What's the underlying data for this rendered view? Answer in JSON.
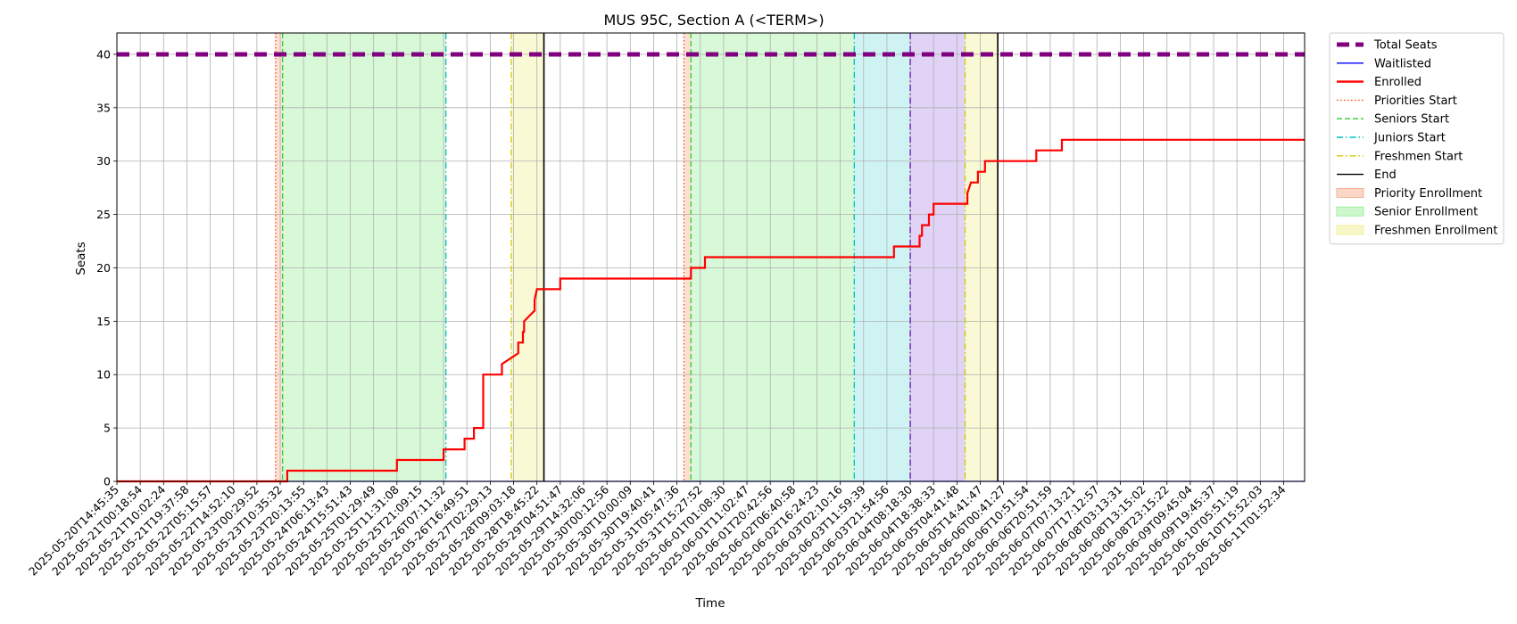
{
  "chart_data": {
    "type": "line",
    "title": "MUS 95C, Section A (<TERM>)",
    "xlabel": "Time",
    "ylabel": "Seats",
    "ylim": [
      0,
      42
    ],
    "yticks": [
      0,
      5,
      10,
      15,
      20,
      25,
      30,
      35,
      40
    ],
    "grid": true,
    "legend_position": "outside-top-right",
    "x_ticks": [
      "2025-05-20T14:45:35",
      "2025-05-21T00:18:54",
      "2025-05-21T10:02:24",
      "2025-05-21T19:37:58",
      "2025-05-22T05:15:57",
      "2025-05-22T14:52:10",
      "2025-05-23T00:29:52",
      "2025-05-23T10:35:32",
      "2025-05-23T20:13:55",
      "2025-05-24T06:13:43",
      "2025-05-24T15:51:43",
      "2025-05-25T01:29:49",
      "2025-05-25T11:31:08",
      "2025-05-25T21:09:15",
      "2025-05-26T07:11:32",
      "2025-05-26T16:49:51",
      "2025-05-27T02:29:13",
      "2025-05-28T09:03:18",
      "2025-05-28T18:45:22",
      "2025-05-29T04:51:47",
      "2025-05-29T14:32:06",
      "2025-05-30T00:12:56",
      "2025-05-30T10:00:09",
      "2025-05-30T19:40:41",
      "2025-05-31T05:47:36",
      "2025-05-31T15:27:52",
      "2025-06-01T01:08:30",
      "2025-06-01T11:02:47",
      "2025-06-01T20:42:56",
      "2025-06-02T06:40:58",
      "2025-06-02T16:24:23",
      "2025-06-03T02:10:16",
      "2025-06-03T11:59:39",
      "2025-06-03T21:54:56",
      "2025-06-04T08:18:30",
      "2025-06-04T18:38:33",
      "2025-06-05T04:41:48",
      "2025-06-05T14:41:47",
      "2025-06-06T00:41:27",
      "2025-06-06T10:51:54",
      "2025-06-06T20:51:59",
      "2025-06-07T07:13:21",
      "2025-06-07T17:12:57",
      "2025-06-08T03:13:31",
      "2025-06-08T13:15:02",
      "2025-06-08T23:15:22",
      "2025-06-09T09:45:04",
      "2025-06-09T19:45:37",
      "2025-06-10T05:51:19",
      "2025-06-10T15:52:03",
      "2025-06-11T01:52:34"
    ],
    "x_extent": [
      0,
      50.9
    ],
    "series": [
      {
        "name": "Total Seats",
        "color": "#800080",
        "style": "dashed",
        "x": [
          0,
          50.9
        ],
        "y": [
          40,
          40
        ]
      },
      {
        "name": "Waitlisted",
        "color": "#0000ff",
        "style": "solid",
        "x": [
          0,
          50.9
        ],
        "y": [
          0,
          0
        ]
      },
      {
        "name": "Enrolled",
        "color": "#ff0000",
        "style": "solid",
        "x": [
          0,
          7.3,
          7.3,
          7.45,
          7.45,
          12.0,
          12.0,
          14.0,
          14.0,
          14.9,
          14.9,
          15.3,
          15.3,
          15.7,
          15.7,
          16.5,
          16.5,
          17.2,
          17.2,
          17.4,
          17.4,
          17.45,
          17.45,
          17.9,
          17.9,
          18.0,
          18.0,
          18.5,
          18.5,
          19.0,
          19.0,
          24.6,
          24.6,
          25.2,
          25.2,
          33.3,
          33.3,
          34.4,
          34.4,
          34.5,
          34.5,
          34.8,
          34.8,
          35.0,
          35.0,
          35.2,
          35.2,
          36.45,
          36.45,
          36.6,
          36.6,
          36.9,
          36.9,
          37.2,
          37.2,
          39.4,
          39.4,
          40.5,
          40.5,
          50.9
        ],
        "y": [
          0,
          0,
          1,
          1,
          1,
          1,
          2,
          2,
          3,
          3,
          4,
          4,
          5,
          5,
          10,
          10,
          11,
          12,
          13,
          13,
          14,
          14,
          15,
          16,
          17,
          18,
          18,
          18,
          18,
          18,
          19,
          19,
          20,
          20,
          21,
          21,
          22,
          22,
          23,
          23,
          24,
          24,
          25,
          25,
          26,
          26,
          26,
          26,
          27,
          28,
          28,
          28,
          29,
          29,
          30,
          30,
          31,
          31,
          32,
          32
        ]
      }
    ],
    "vlines": [
      {
        "name": "Priorities Start",
        "color": "#ff4500",
        "style": "dotted",
        "x": [
          6.8,
          24.3
        ]
      },
      {
        "name": "Seniors Start",
        "color": "#32cd32",
        "style": "dashed",
        "x": [
          7.1,
          24.6
        ]
      },
      {
        "name": "Juniors Start",
        "color": "#00bfbf",
        "style": "dashdot",
        "x": [
          14.1,
          31.6
        ]
      },
      {
        "name": "Sophomores Start",
        "color": "#6a0dad",
        "style": "dashdot",
        "x": [
          34.0
        ]
      },
      {
        "name": "Freshmen Start",
        "color": "#cccc00",
        "style": "dashdot",
        "x": [
          16.9,
          36.35
        ]
      },
      {
        "name": "End",
        "color": "#000000",
        "style": "solid",
        "x": [
          18.3,
          37.75
        ]
      }
    ],
    "spans": [
      {
        "name": "Priority Enrollment",
        "color": "#f4a582",
        "alpha": 0.35,
        "ranges": [
          [
            6.8,
            7.1
          ],
          [
            24.3,
            24.6
          ]
        ]
      },
      {
        "name": "Senior Enrollment",
        "color": "#90ee90",
        "alpha": 0.35,
        "ranges": [
          [
            7.1,
            14.1
          ],
          [
            24.6,
            31.6
          ]
        ]
      },
      {
        "name": "Junior Enrollment",
        "color": "#40d0d0",
        "alpha": 0.25,
        "ranges": [
          [
            31.6,
            34.0
          ]
        ]
      },
      {
        "name": "Sophomore Enrollment",
        "color": "#9b6ee0",
        "alpha": 0.3,
        "ranges": [
          [
            34.0,
            36.35
          ]
        ]
      },
      {
        "name": "Freshmen Enrollment",
        "color": "#eeee88",
        "alpha": 0.35,
        "ranges": [
          [
            16.9,
            18.3
          ],
          [
            36.35,
            37.75
          ]
        ]
      }
    ],
    "legend": [
      {
        "label": "Total Seats",
        "kind": "line",
        "color": "#800080",
        "style": "dashed-thick"
      },
      {
        "label": "Waitlisted",
        "kind": "line",
        "color": "#0000ff",
        "style": "solid"
      },
      {
        "label": "Enrolled",
        "kind": "line",
        "color": "#ff0000",
        "style": "solid-thick"
      },
      {
        "label": "Priorities Start",
        "kind": "line",
        "color": "#ff4500",
        "style": "dotted"
      },
      {
        "label": "Seniors Start",
        "kind": "line",
        "color": "#32cd32",
        "style": "dashed"
      },
      {
        "label": "Juniors Start",
        "kind": "line",
        "color": "#00bfbf",
        "style": "dashdot"
      },
      {
        "label": "Freshmen Start",
        "kind": "line",
        "color": "#cccc00",
        "style": "dashdot"
      },
      {
        "label": "End",
        "kind": "line",
        "color": "#000000",
        "style": "solid"
      },
      {
        "label": "Priority Enrollment",
        "kind": "patch",
        "color": "#f4a582"
      },
      {
        "label": "Senior Enrollment",
        "kind": "patch",
        "color": "#90ee90"
      },
      {
        "label": "Freshmen Enrollment",
        "kind": "patch",
        "color": "#eeee88"
      }
    ]
  }
}
